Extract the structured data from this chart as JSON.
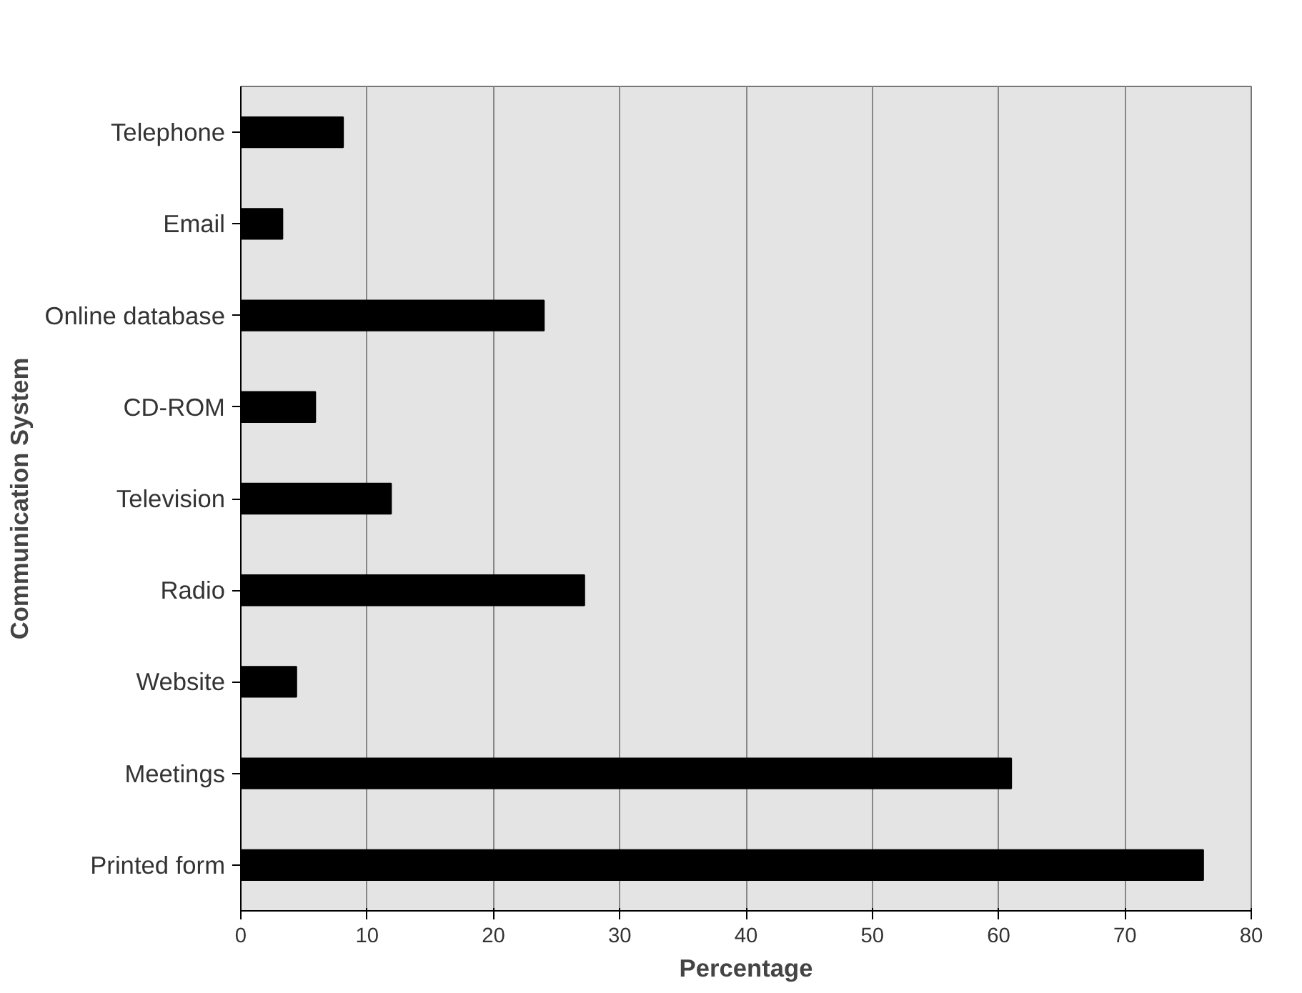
{
  "chart_data": {
    "type": "bar",
    "orientation": "horizontal",
    "xlabel": "Percentage",
    "ylabel": "Communication System",
    "categories": [
      "Telephone",
      "Email",
      "Online database",
      "CD-ROM",
      "Television",
      "Radio",
      "Website",
      "Meetings",
      "Printed form"
    ],
    "values": [
      8.1,
      3.3,
      24,
      5.9,
      11.9,
      27.2,
      4.4,
      61,
      76.2
    ],
    "color": "#000000",
    "xlim": [
      0,
      80
    ],
    "xticks": [
      0,
      10,
      20,
      30,
      40,
      50,
      60,
      70,
      80
    ],
    "grid": "x"
  }
}
